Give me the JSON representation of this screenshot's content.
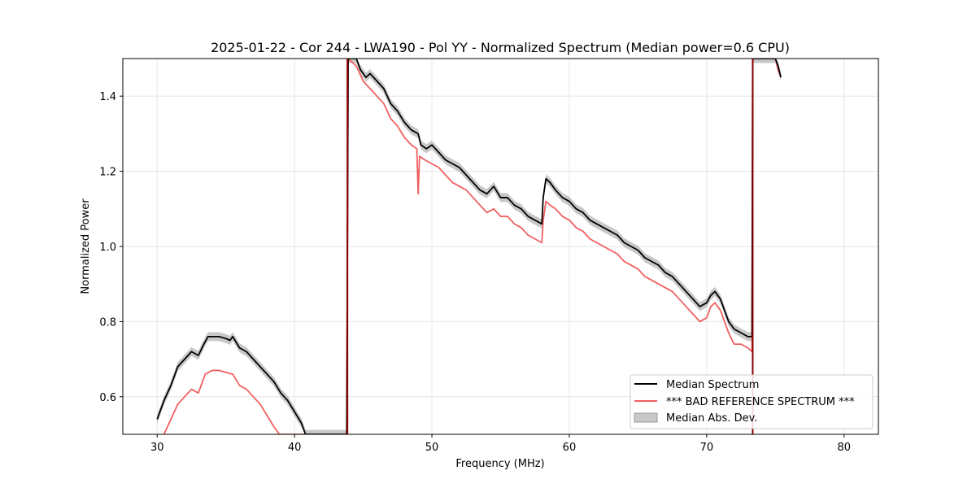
{
  "chart_data": {
    "type": "line",
    "title": "2025-01-22 - Cor 244 - LWA190 - Pol YY - Normalized Spectrum (Median power=0.6 CPU)",
    "xlabel": "Frequency (MHz)",
    "ylabel": "Normalized Power",
    "xlim": [
      27.5,
      82.5
    ],
    "ylim": [
      0.5,
      1.5
    ],
    "xticks": [
      30,
      40,
      50,
      60,
      70,
      80
    ],
    "xtick_labels": [
      "30",
      "40",
      "50",
      "60",
      "70",
      "80"
    ],
    "yticks": [
      0.6,
      0.8,
      1.0,
      1.2,
      1.4
    ],
    "ytick_labels": [
      "0.6",
      "0.8",
      "1.0",
      "1.2",
      "1.4"
    ],
    "grid": true,
    "legend_position": "bottom-right",
    "series": [
      {
        "name": "Median Spectrum",
        "color": "#000000",
        "points": [
          [
            30.0,
            0.54
          ],
          [
            30.5,
            0.59
          ],
          [
            31.0,
            0.63
          ],
          [
            31.5,
            0.68
          ],
          [
            32.0,
            0.7
          ],
          [
            32.5,
            0.72
          ],
          [
            33.0,
            0.71
          ],
          [
            33.4,
            0.74
          ],
          [
            33.7,
            0.76
          ],
          [
            34.0,
            0.76
          ],
          [
            34.5,
            0.76
          ],
          [
            35.0,
            0.755
          ],
          [
            35.3,
            0.75
          ],
          [
            35.5,
            0.76
          ],
          [
            36.0,
            0.73
          ],
          [
            36.5,
            0.72
          ],
          [
            37.0,
            0.7
          ],
          [
            37.5,
            0.68
          ],
          [
            38.0,
            0.66
          ],
          [
            38.5,
            0.64
          ],
          [
            39.0,
            0.61
          ],
          [
            39.5,
            0.59
          ],
          [
            40.0,
            0.56
          ],
          [
            40.5,
            0.53
          ],
          [
            40.8,
            0.5
          ],
          [
            43.8,
            0.5
          ],
          [
            43.9,
            1.5
          ],
          [
            44.5,
            1.5
          ],
          [
            44.8,
            1.47
          ],
          [
            45.2,
            1.45
          ],
          [
            45.5,
            1.46
          ],
          [
            46.0,
            1.44
          ],
          [
            46.5,
            1.42
          ],
          [
            47.0,
            1.38
          ],
          [
            47.5,
            1.36
          ],
          [
            48.0,
            1.33
          ],
          [
            48.5,
            1.31
          ],
          [
            49.0,
            1.3
          ],
          [
            49.2,
            1.27
          ],
          [
            49.6,
            1.26
          ],
          [
            50.0,
            1.27
          ],
          [
            50.5,
            1.25
          ],
          [
            51.0,
            1.23
          ],
          [
            51.5,
            1.22
          ],
          [
            52.0,
            1.21
          ],
          [
            52.5,
            1.19
          ],
          [
            53.0,
            1.17
          ],
          [
            53.5,
            1.15
          ],
          [
            54.0,
            1.14
          ],
          [
            54.5,
            1.16
          ],
          [
            55.0,
            1.13
          ],
          [
            55.5,
            1.13
          ],
          [
            56.0,
            1.11
          ],
          [
            56.5,
            1.1
          ],
          [
            57.0,
            1.08
          ],
          [
            57.5,
            1.07
          ],
          [
            58.0,
            1.06
          ],
          [
            58.1,
            1.13
          ],
          [
            58.3,
            1.18
          ],
          [
            58.6,
            1.17
          ],
          [
            59.0,
            1.15
          ],
          [
            59.5,
            1.13
          ],
          [
            60.0,
            1.12
          ],
          [
            60.5,
            1.1
          ],
          [
            61.0,
            1.09
          ],
          [
            61.5,
            1.07
          ],
          [
            62.0,
            1.06
          ],
          [
            62.5,
            1.05
          ],
          [
            63.0,
            1.04
          ],
          [
            63.5,
            1.03
          ],
          [
            64.0,
            1.01
          ],
          [
            64.5,
            1.0
          ],
          [
            65.0,
            0.99
          ],
          [
            65.5,
            0.97
          ],
          [
            66.0,
            0.96
          ],
          [
            66.5,
            0.95
          ],
          [
            67.0,
            0.93
          ],
          [
            67.5,
            0.92
          ],
          [
            68.0,
            0.9
          ],
          [
            68.5,
            0.88
          ],
          [
            69.0,
            0.86
          ],
          [
            69.5,
            0.84
          ],
          [
            70.0,
            0.85
          ],
          [
            70.3,
            0.87
          ],
          [
            70.6,
            0.88
          ],
          [
            71.0,
            0.86
          ],
          [
            71.3,
            0.83
          ],
          [
            71.6,
            0.8
          ],
          [
            72.0,
            0.78
          ],
          [
            72.5,
            0.77
          ],
          [
            73.0,
            0.76
          ],
          [
            73.3,
            0.76
          ],
          [
            73.35,
            1.5
          ],
          [
            75.0,
            1.5
          ],
          [
            75.2,
            1.48
          ],
          [
            75.4,
            1.45
          ]
        ]
      },
      {
        "name": "*** BAD REFERENCE SPECTRUM ***",
        "color": "#f06060",
        "points": [
          [
            30.5,
            0.5
          ],
          [
            31.0,
            0.54
          ],
          [
            31.5,
            0.58
          ],
          [
            32.0,
            0.6
          ],
          [
            32.5,
            0.62
          ],
          [
            33.0,
            0.61
          ],
          [
            33.5,
            0.66
          ],
          [
            34.0,
            0.67
          ],
          [
            34.5,
            0.67
          ],
          [
            35.0,
            0.665
          ],
          [
            35.5,
            0.66
          ],
          [
            36.0,
            0.63
          ],
          [
            36.5,
            0.62
          ],
          [
            37.0,
            0.6
          ],
          [
            37.5,
            0.58
          ],
          [
            38.0,
            0.55
          ],
          [
            38.5,
            0.52
          ],
          [
            38.9,
            0.5
          ],
          [
            43.8,
            0.5
          ],
          [
            43.9,
            1.5
          ],
          [
            44.5,
            1.48
          ],
          [
            45.0,
            1.44
          ],
          [
            45.5,
            1.42
          ],
          [
            46.0,
            1.4
          ],
          [
            46.5,
            1.38
          ],
          [
            47.0,
            1.34
          ],
          [
            47.5,
            1.32
          ],
          [
            48.0,
            1.29
          ],
          [
            48.5,
            1.27
          ],
          [
            48.9,
            1.26
          ],
          [
            49.0,
            1.14
          ],
          [
            49.1,
            1.24
          ],
          [
            49.5,
            1.23
          ],
          [
            50.0,
            1.22
          ],
          [
            50.5,
            1.21
          ],
          [
            51.0,
            1.19
          ],
          [
            51.5,
            1.17
          ],
          [
            52.0,
            1.16
          ],
          [
            52.5,
            1.15
          ],
          [
            53.0,
            1.13
          ],
          [
            53.5,
            1.11
          ],
          [
            54.0,
            1.09
          ],
          [
            54.5,
            1.1
          ],
          [
            55.0,
            1.08
          ],
          [
            55.5,
            1.08
          ],
          [
            56.0,
            1.06
          ],
          [
            56.5,
            1.05
          ],
          [
            57.0,
            1.03
          ],
          [
            57.5,
            1.02
          ],
          [
            58.0,
            1.01
          ],
          [
            58.1,
            1.07
          ],
          [
            58.3,
            1.12
          ],
          [
            58.6,
            1.11
          ],
          [
            59.0,
            1.1
          ],
          [
            59.5,
            1.08
          ],
          [
            60.0,
            1.07
          ],
          [
            60.5,
            1.05
          ],
          [
            61.0,
            1.04
          ],
          [
            61.5,
            1.02
          ],
          [
            62.0,
            1.01
          ],
          [
            62.5,
            1.0
          ],
          [
            63.0,
            0.99
          ],
          [
            63.5,
            0.98
          ],
          [
            64.0,
            0.96
          ],
          [
            64.5,
            0.95
          ],
          [
            65.0,
            0.94
          ],
          [
            65.5,
            0.92
          ],
          [
            66.0,
            0.91
          ],
          [
            66.5,
            0.9
          ],
          [
            67.0,
            0.89
          ],
          [
            67.5,
            0.88
          ],
          [
            68.0,
            0.86
          ],
          [
            68.5,
            0.84
          ],
          [
            69.0,
            0.82
          ],
          [
            69.5,
            0.8
          ],
          [
            70.0,
            0.81
          ],
          [
            70.3,
            0.84
          ],
          [
            70.6,
            0.85
          ],
          [
            71.0,
            0.83
          ],
          [
            71.3,
            0.8
          ],
          [
            71.6,
            0.77
          ],
          [
            72.0,
            0.74
          ],
          [
            72.5,
            0.74
          ],
          [
            73.0,
            0.73
          ],
          [
            73.3,
            0.72
          ],
          [
            73.35,
            1.5
          ],
          [
            75.0,
            1.5
          ],
          [
            75.2,
            1.47
          ],
          [
            75.4,
            1.45
          ]
        ]
      }
    ],
    "band": {
      "name": "Median Abs. Dev.",
      "color": "#b0b0b0",
      "half_width": 0.012
    },
    "vertical_lines": [
      {
        "x": 43.85,
        "color": "#8b0000"
      },
      {
        "x": 73.35,
        "color": "#8b0000"
      }
    ]
  }
}
